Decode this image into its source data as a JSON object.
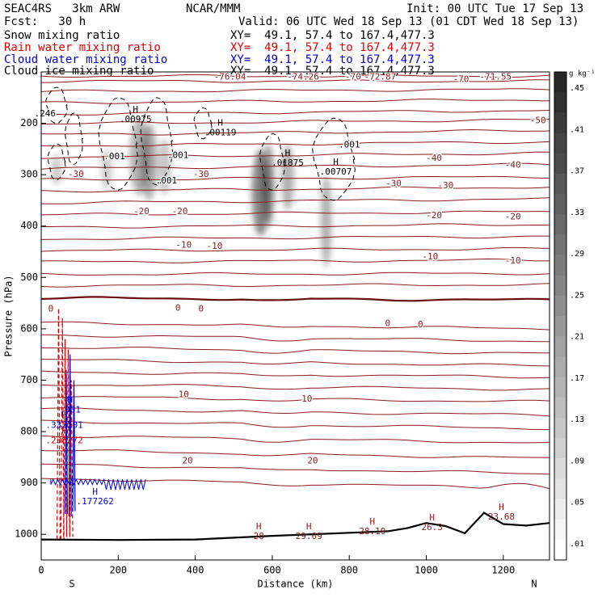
{
  "header": {
    "model": "SEAC4RS   3km ARW",
    "org": "NCAR/MMM",
    "init": "Init: 00 UTC Tue 17 Sep 13",
    "fcst": "Fcst:   30 h",
    "valid": "Valid: 06 UTC Wed 18 Sep 13 (01 CDT Wed 18 Sep 13)",
    "fields": [
      {
        "label": "Snow mixing ratio",
        "xy": "XY=  49.1, 57.4 to 167.4,477.3",
        "color": "#000000"
      },
      {
        "label": "Rain water mixing ratio",
        "xy": "XY=  49.1, 57.4 to 167.4,477.3",
        "color": "#e00000"
      },
      {
        "label": "Cloud water mixing ratio",
        "xy": "XY=  49.1, 57.4 to 167.4,477.3",
        "color": "#0000d0"
      },
      {
        "label": "Cloud ice mixing ratio",
        "xy": "XY=  49.1, 57.4 to 167.4,477.3",
        "color": "#000000"
      }
    ]
  },
  "colors": {
    "temperature": "#8b1a1a",
    "freezing_level": "#6a0f0f",
    "terrain": "#000000",
    "rain": "#e00000",
    "cloud_water": "#0000d0"
  },
  "chart_data": {
    "type": "contour-cross-section",
    "xlabel": "Distance (km)",
    "ylabel": "Pressure (hPa)",
    "xlim": [
      0,
      1320
    ],
    "ylim": [
      100,
      1050
    ],
    "x_ticks": [
      0,
      200,
      400,
      600,
      800,
      1000,
      1200
    ],
    "y_ticks": [
      200,
      300,
      400,
      500,
      600,
      700,
      800,
      900,
      1000
    ],
    "x_end_labels": {
      "left": "S",
      "right": "N"
    },
    "colorbar": {
      "unit": "g kg⁻¹",
      "ticks": [
        ".01",
        ".05",
        ".09",
        ".13",
        ".17",
        ".21",
        ".25",
        ".29",
        ".33",
        ".37",
        ".41",
        ".45"
      ]
    },
    "temperature_isotherms": [
      {
        "label": "-76.04",
        "x": 490,
        "p": 110
      },
      {
        "label": "-74.26",
        "x": 680,
        "p": 110
      },
      {
        "label": "-72.87",
        "x": 880,
        "p": 110
      },
      {
        "label": "-71.55",
        "x": 1180,
        "p": 110
      },
      {
        "label": "-70",
        "x": 810,
        "p": 110
      },
      {
        "label": "-70",
        "x": 1090,
        "p": 115
      },
      {
        "label": "-50",
        "x": 1290,
        "p": 195
      },
      {
        "label": "-40",
        "x": 1020,
        "p": 268
      },
      {
        "label": "-40",
        "x": 1225,
        "p": 282
      },
      {
        "label": "-30",
        "x": 90,
        "p": 300
      },
      {
        "label": "-30",
        "x": 415,
        "p": 300
      },
      {
        "label": "-30",
        "x": 915,
        "p": 318
      },
      {
        "label": "-30",
        "x": 1050,
        "p": 322
      },
      {
        "label": "-20",
        "x": 260,
        "p": 372
      },
      {
        "label": "-20",
        "x": 360,
        "p": 372
      },
      {
        "label": "-20",
        "x": 1020,
        "p": 380
      },
      {
        "label": "-20",
        "x": 1225,
        "p": 382
      },
      {
        "label": "-10",
        "x": 370,
        "p": 437
      },
      {
        "label": "-10",
        "x": 450,
        "p": 440
      },
      {
        "label": "-10",
        "x": 1010,
        "p": 460
      },
      {
        "label": "-10",
        "x": 1225,
        "p": 468
      },
      {
        "label": "0",
        "x": 25,
        "p": 562
      },
      {
        "label": "0",
        "x": 355,
        "p": 560
      },
      {
        "label": "0",
        "x": 415,
        "p": 562
      },
      {
        "label": "0",
        "x": 900,
        "p": 590
      },
      {
        "label": "0",
        "x": 985,
        "p": 592
      },
      {
        "label": "10",
        "x": 370,
        "p": 728
      },
      {
        "label": "10",
        "x": 690,
        "p": 737
      },
      {
        "label": "20",
        "x": 380,
        "p": 857
      },
      {
        "label": "20",
        "x": 705,
        "p": 857
      }
    ],
    "snow_maxima": [
      {
        "label": ".00975",
        "x": 245,
        "p": 188
      },
      {
        "label": ".00119",
        "x": 465,
        "p": 214
      },
      {
        "label": ".01875",
        "x": 640,
        "p": 273
      },
      {
        "label": ".00707",
        "x": 765,
        "p": 290
      }
    ],
    "ice_labels": [
      {
        "label": ".001",
        "x": 190,
        "p": 265
      },
      {
        "label": ".001",
        "x": 355,
        "p": 263
      },
      {
        "label": ".001",
        "x": 325,
        "p": 312
      },
      {
        "label": ".001",
        "x": 800,
        "p": 242
      },
      {
        "label": ".246",
        "x": 10,
        "p": 182
      }
    ],
    "rain_maxima": [
      {
        "label": ".238272",
        "x": 60,
        "p": 818
      }
    ],
    "cloud_water_maxima": [
      {
        "label": ".332201",
        "x": 60,
        "p": 788
      },
      {
        "label": ".177262",
        "x": 140,
        "p": 937
      },
      {
        "label": ".001",
        "x": 75,
        "p": 758
      }
    ],
    "surface_maxima": [
      {
        "label": "28",
        "x": 565,
        "p": 1000
      },
      {
        "label": "29.09",
        "x": 695,
        "p": 1000
      },
      {
        "label": "28.19",
        "x": 860,
        "p": 990
      },
      {
        "label": "26.3",
        "x": 1015,
        "p": 982
      },
      {
        "label": "23.68",
        "x": 1195,
        "p": 962
      }
    ],
    "terrain_surface": [
      {
        "x": 0,
        "p": 1010
      },
      {
        "x": 200,
        "p": 1011
      },
      {
        "x": 400,
        "p": 1010
      },
      {
        "x": 600,
        "p": 1003
      },
      {
        "x": 800,
        "p": 997
      },
      {
        "x": 900,
        "p": 994
      },
      {
        "x": 950,
        "p": 988
      },
      {
        "x": 1000,
        "p": 978
      },
      {
        "x": 1050,
        "p": 984
      },
      {
        "x": 1100,
        "p": 998
      },
      {
        "x": 1150,
        "p": 958
      },
      {
        "x": 1200,
        "p": 980
      },
      {
        "x": 1260,
        "p": 983
      },
      {
        "x": 1320,
        "p": 978
      }
    ]
  }
}
